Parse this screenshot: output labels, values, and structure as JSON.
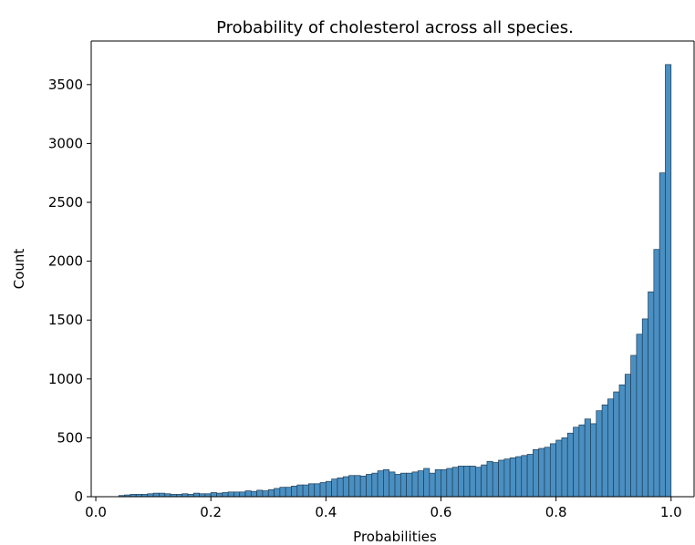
{
  "chart_data": {
    "type": "histogram",
    "title": "Probability of cholesterol across all species.",
    "x_label": "Probabilities",
    "y_label": "Count",
    "color": "#4a8fc1",
    "bins": [
      0.04,
      0.05,
      0.06,
      0.07,
      0.08,
      0.09,
      0.1,
      0.11,
      0.12,
      0.13,
      0.14,
      0.15,
      0.16,
      0.17,
      0.18,
      0.19,
      0.2,
      0.21,
      0.22,
      0.23,
      0.24,
      0.25,
      0.26,
      0.27,
      0.28,
      0.29,
      0.3,
      0.31,
      0.32,
      0.33,
      0.34,
      0.35,
      0.36,
      0.37,
      0.38,
      0.39,
      0.4,
      0.41,
      0.42,
      0.43,
      0.44,
      0.45,
      0.46,
      0.47,
      0.48,
      0.49,
      0.5,
      0.51,
      0.52,
      0.53,
      0.54,
      0.55,
      0.56,
      0.57,
      0.58,
      0.59,
      0.6,
      0.61,
      0.62,
      0.63,
      0.64,
      0.65,
      0.66,
      0.67,
      0.68,
      0.69,
      0.7,
      0.71,
      0.72,
      0.73,
      0.74,
      0.75,
      0.76,
      0.77,
      0.78,
      0.79,
      0.8,
      0.81,
      0.82,
      0.83,
      0.84,
      0.85,
      0.86,
      0.87,
      0.88,
      0.89,
      0.9,
      0.91,
      0.92,
      0.93,
      0.94,
      0.95,
      0.96,
      0.97,
      0.98,
      0.99,
      1.0
    ],
    "values": [
      10,
      15,
      20,
      20,
      20,
      25,
      30,
      30,
      25,
      20,
      20,
      25,
      20,
      30,
      25,
      25,
      35,
      30,
      35,
      40,
      40,
      40,
      50,
      45,
      55,
      50,
      60,
      70,
      80,
      80,
      90,
      100,
      100,
      110,
      110,
      120,
      130,
      150,
      160,
      170,
      180,
      180,
      175,
      190,
      200,
      220,
      230,
      210,
      190,
      200,
      200,
      210,
      220,
      240,
      200,
      230,
      230,
      240,
      250,
      260,
      260,
      260,
      250,
      270,
      300,
      290,
      310,
      320,
      330,
      340,
      350,
      360,
      400,
      410,
      420,
      450,
      480,
      500,
      540,
      590,
      610,
      660,
      620,
      730,
      780,
      830,
      890,
      950,
      1040,
      1200,
      1380,
      1510,
      1740,
      2100,
      2750,
      3670
    ],
    "xlim": [
      -0.008,
      1.04
    ],
    "ylim": [
      0,
      3870
    ],
    "xticks": [
      {
        "value": 0,
        "label": "0.0"
      },
      0.2,
      0.4,
      0.6,
      0.8,
      {
        "value": 1,
        "label": "1.0"
      }
    ],
    "yticks": [
      0,
      500,
      1000,
      1500,
      2000,
      2500,
      3000,
      3500
    ]
  }
}
